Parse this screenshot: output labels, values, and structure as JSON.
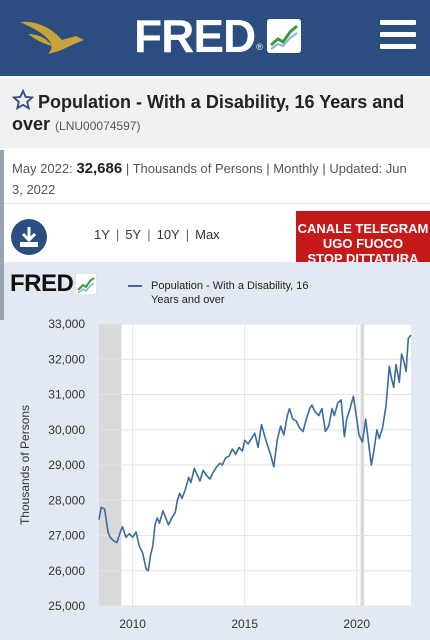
{
  "header": {
    "brand": "FRED",
    "brand_reg": "®",
    "menu_icon": "hamburger-menu-icon"
  },
  "series": {
    "title": "Population - With a Disability, 16 Years and over",
    "id": "(LNU00074597)"
  },
  "observation": {
    "date": "May 2022:",
    "value": "32,686",
    "details": "| Thousands of Persons | Monthly | Updated: Jun 3, 2022"
  },
  "ranges": [
    "1Y",
    "5Y",
    "10Y",
    "Max"
  ],
  "banner": {
    "lines": [
      "CANALE TELEGRAM",
      "UGO FUOCO",
      "STOP DITTATURA"
    ]
  },
  "colors": {
    "header": "#2c4d7f",
    "line": "#3a6ba3",
    "chart_bg": "#e2e9f2",
    "banner": "#c61a1a",
    "recession": "#d9d9d9"
  },
  "chart": {
    "brand": "FRED",
    "legend": "Population - With a Disability, 16 Years and over"
  },
  "chart_data": {
    "type": "line",
    "ylabel": "Thousands of Persons",
    "xlabel": "",
    "ylim": [
      25000,
      33000
    ],
    "yticks": [
      25000,
      26000,
      27000,
      28000,
      29000,
      30000,
      31000,
      32000,
      33000
    ],
    "ytick_labels": [
      "25,000",
      "26,000",
      "27,000",
      "28,000",
      "29,000",
      "30,000",
      "31,000",
      "32,000",
      "33,000"
    ],
    "xlim": [
      2008.5,
      2022.42
    ],
    "xticks": [
      2010,
      2015,
      2020
    ],
    "xtick_labels": [
      "2010",
      "2015",
      "2020"
    ],
    "grid": true,
    "recessions": [
      [
        2008.5,
        2009.5
      ],
      [
        2020.17,
        2020.33
      ]
    ],
    "series": [
      {
        "name": "Population - With a Disability, 16 Years and over",
        "points": [
          [
            2008.5,
            27450
          ],
          [
            2008.6,
            27800
          ],
          [
            2008.75,
            27750
          ],
          [
            2008.9,
            27100
          ],
          [
            2009.0,
            26950
          ],
          [
            2009.15,
            26850
          ],
          [
            2009.3,
            26800
          ],
          [
            2009.45,
            27100
          ],
          [
            2009.55,
            27250
          ],
          [
            2009.7,
            26950
          ],
          [
            2009.85,
            27050
          ],
          [
            2010.0,
            26950
          ],
          [
            2010.15,
            27100
          ],
          [
            2010.3,
            26700
          ],
          [
            2010.45,
            26500
          ],
          [
            2010.6,
            26050
          ],
          [
            2010.7,
            26000
          ],
          [
            2010.8,
            26450
          ],
          [
            2010.9,
            26700
          ],
          [
            2011.0,
            27300
          ],
          [
            2011.1,
            27500
          ],
          [
            2011.2,
            27350
          ],
          [
            2011.35,
            27700
          ],
          [
            2011.45,
            27550
          ],
          [
            2011.6,
            27300
          ],
          [
            2011.75,
            27500
          ],
          [
            2011.9,
            27650
          ],
          [
            2012.0,
            28000
          ],
          [
            2012.1,
            28200
          ],
          [
            2012.2,
            28050
          ],
          [
            2012.35,
            28300
          ],
          [
            2012.5,
            28650
          ],
          [
            2012.6,
            28500
          ],
          [
            2012.75,
            28900
          ],
          [
            2012.9,
            28700
          ],
          [
            2013.0,
            28550
          ],
          [
            2013.15,
            28850
          ],
          [
            2013.3,
            28700
          ],
          [
            2013.45,
            28600
          ],
          [
            2013.6,
            28800
          ],
          [
            2013.75,
            28950
          ],
          [
            2013.9,
            29050
          ],
          [
            2014.0,
            29000
          ],
          [
            2014.15,
            29200
          ],
          [
            2014.3,
            29250
          ],
          [
            2014.45,
            29450
          ],
          [
            2014.6,
            29300
          ],
          [
            2014.75,
            29500
          ],
          [
            2014.9,
            29400
          ],
          [
            2015.0,
            29700
          ],
          [
            2015.15,
            29600
          ],
          [
            2015.3,
            29750
          ],
          [
            2015.45,
            29900
          ],
          [
            2015.6,
            29500
          ],
          [
            2015.75,
            30150
          ],
          [
            2015.9,
            29800
          ],
          [
            2016.0,
            29600
          ],
          [
            2016.15,
            29300
          ],
          [
            2016.3,
            28950
          ],
          [
            2016.45,
            29700
          ],
          [
            2016.6,
            30100
          ],
          [
            2016.75,
            29850
          ],
          [
            2016.9,
            30400
          ],
          [
            2017.0,
            30600
          ],
          [
            2017.15,
            30300
          ],
          [
            2017.3,
            30250
          ],
          [
            2017.45,
            30050
          ],
          [
            2017.6,
            29950
          ],
          [
            2017.75,
            30300
          ],
          [
            2017.9,
            30600
          ],
          [
            2018.0,
            30700
          ],
          [
            2018.15,
            30500
          ],
          [
            2018.3,
            30400
          ],
          [
            2018.45,
            30600
          ],
          [
            2018.6,
            29950
          ],
          [
            2018.75,
            30100
          ],
          [
            2018.9,
            30600
          ],
          [
            2019.0,
            30400
          ],
          [
            2019.15,
            30750
          ],
          [
            2019.3,
            30850
          ],
          [
            2019.45,
            29800
          ],
          [
            2019.55,
            30300
          ],
          [
            2019.7,
            30600
          ],
          [
            2019.85,
            30950
          ],
          [
            2020.0,
            30300
          ],
          [
            2020.1,
            29850
          ],
          [
            2020.25,
            29650
          ],
          [
            2020.4,
            30300
          ],
          [
            2020.55,
            29500
          ],
          [
            2020.65,
            29000
          ],
          [
            2020.75,
            29350
          ],
          [
            2020.9,
            30000
          ],
          [
            2021.0,
            29750
          ],
          [
            2021.15,
            30050
          ],
          [
            2021.3,
            30650
          ],
          [
            2021.45,
            31800
          ],
          [
            2021.55,
            31450
          ],
          [
            2021.65,
            31200
          ],
          [
            2021.75,
            31850
          ],
          [
            2021.9,
            31350
          ],
          [
            2022.0,
            32150
          ],
          [
            2022.1,
            31950
          ],
          [
            2022.2,
            31650
          ],
          [
            2022.3,
            32600
          ],
          [
            2022.42,
            32686
          ]
        ]
      }
    ]
  }
}
